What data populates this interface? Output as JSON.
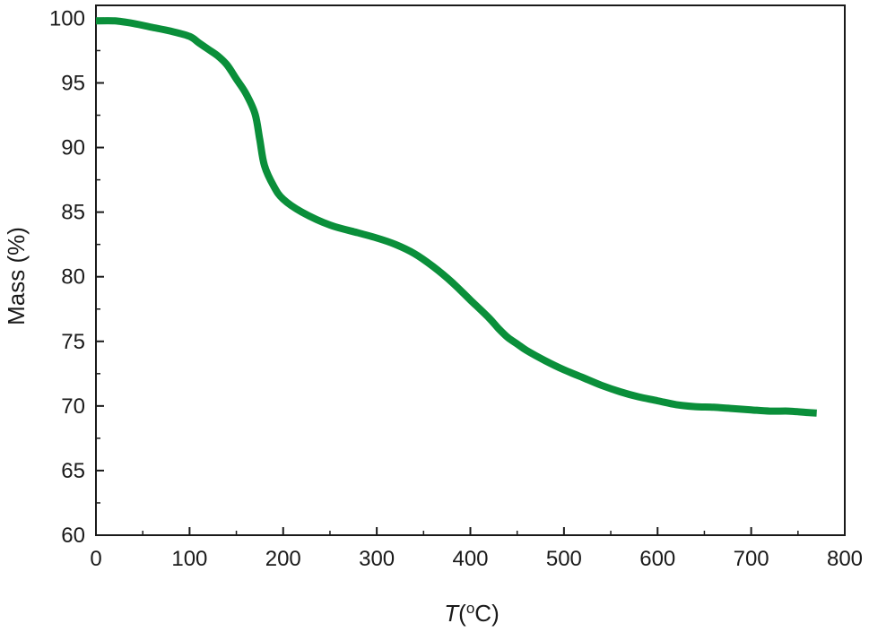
{
  "chart_data": {
    "type": "line",
    "title": "",
    "xlabel": {
      "italic": "T",
      "rest_before_sup": "(",
      "sup": "o",
      "rest_after_sup": "C)"
    },
    "ylabel": "Mass (%)",
    "xlim": [
      0,
      800
    ],
    "ylim": [
      60,
      101
    ],
    "x_ticks": [
      0,
      100,
      200,
      300,
      400,
      500,
      600,
      700,
      800
    ],
    "y_ticks": [
      60,
      65,
      70,
      75,
      80,
      85,
      90,
      95,
      100
    ],
    "grid": false,
    "legend": "none",
    "colors": {
      "series": "#0a8f3a",
      "axis": "#1a1a1a"
    },
    "series": [
      {
        "x": [
          0,
          20,
          40,
          60,
          80,
          100,
          110,
          120,
          130,
          140,
          150,
          160,
          170,
          175,
          180,
          190,
          200,
          220,
          250,
          280,
          300,
          320,
          340,
          360,
          380,
          400,
          420,
          430,
          440,
          450,
          460,
          480,
          500,
          520,
          540,
          560,
          580,
          600,
          620,
          640,
          660,
          680,
          700,
          720,
          740,
          760,
          770
        ],
        "y": [
          99.8,
          99.8,
          99.6,
          99.3,
          99.0,
          98.6,
          98.1,
          97.6,
          97.1,
          96.4,
          95.3,
          94.2,
          92.6,
          90.6,
          88.6,
          87.0,
          86.0,
          85.0,
          84.0,
          83.4,
          83.0,
          82.5,
          81.8,
          80.8,
          79.6,
          78.2,
          76.8,
          76.0,
          75.3,
          74.8,
          74.3,
          73.5,
          72.8,
          72.2,
          71.6,
          71.1,
          70.7,
          70.4,
          70.1,
          69.95,
          69.9,
          69.8,
          69.7,
          69.6,
          69.6,
          69.5,
          69.45
        ]
      }
    ]
  }
}
